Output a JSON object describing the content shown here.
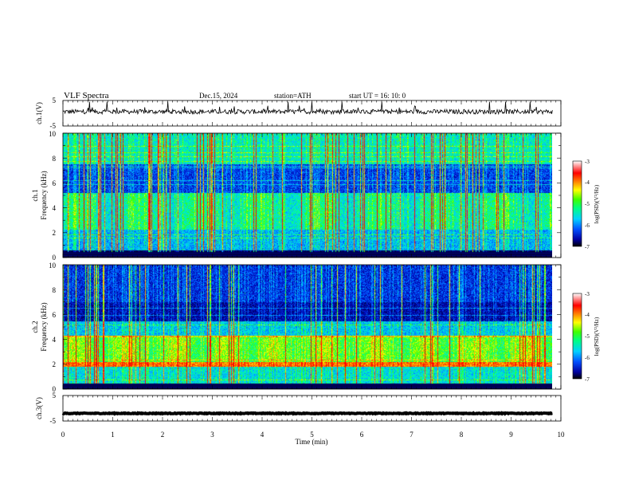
{
  "header": {
    "title": "VLF  Spectra",
    "date": "Dec.15, 2024",
    "station": "station=ATH",
    "start": "start  UT  =    16: 10: 0"
  },
  "chart_data": [
    {
      "type": "line",
      "title": "",
      "ylabel": "ch.1(V)",
      "ylim": [
        -5,
        5
      ],
      "yticks": [
        "5",
        "-5"
      ],
      "trend": "noisy waveform around +0.5 V with short spikes up to ~5 V"
    },
    {
      "type": "heatmap",
      "ylabel": "ch.1",
      "ylabel2": "Frequency  (kHz)",
      "ylim": [
        0,
        10
      ],
      "yticks": [
        "10",
        "8",
        "6",
        "4",
        "2",
        "0"
      ],
      "xlim": [
        0,
        10
      ],
      "colorbar": {
        "label": "log(PSD)(V²/Hz)",
        "ticks": [
          "-3",
          "-4",
          "-5",
          "-6",
          "-7"
        ],
        "range": [
          -7,
          -3
        ],
        "colors": [
          "#000000",
          "#0000cc",
          "#00a0ff",
          "#00ffff",
          "#00e000",
          "#ffff00",
          "#ff8000",
          "#ff0000",
          "#ffffff"
        ]
      }
    },
    {
      "type": "heatmap",
      "ylabel": "ch.2",
      "ylabel2": "Frequency  (kHz)",
      "ylim": [
        0,
        10
      ],
      "yticks": [
        "10",
        "8",
        "6",
        "4",
        "2",
        "0"
      ],
      "xlim": [
        0,
        10
      ],
      "colorbar": {
        "label": "log(PSD)(V²/Hz)",
        "ticks": [
          "-3",
          "-4",
          "-5",
          "-6",
          "-7"
        ],
        "range": [
          -7,
          -3
        ]
      }
    },
    {
      "type": "line",
      "ylabel": "ch.3(V)",
      "ylim": [
        -5,
        5
      ],
      "yticks": [
        "5",
        "-5"
      ],
      "trend": "flat near -2 V"
    }
  ],
  "xaxis": {
    "label": "Time  (min)",
    "xlim": [
      0,
      10
    ],
    "ticks": [
      "0",
      "1",
      "2",
      "3",
      "4",
      "5",
      "6",
      "7",
      "8",
      "9",
      "10"
    ],
    "data_end": 9.83
  }
}
